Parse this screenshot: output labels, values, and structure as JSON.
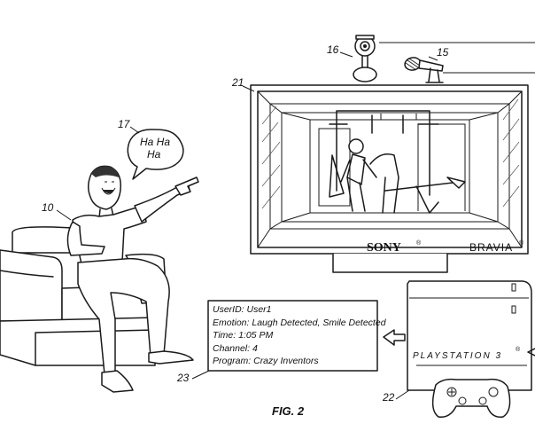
{
  "refs": {
    "camera": "16",
    "microphone": "15",
    "display": "21",
    "speech_bubble": "17",
    "user": "10",
    "info_box": "23",
    "console": "22"
  },
  "speech": {
    "line1": "Ha Ha",
    "line2": "Ha"
  },
  "tv": {
    "brand": "SONY",
    "brand_mark": "®",
    "model": "BRAVIA",
    "model_mark": "®"
  },
  "console_label": "PLAYSTATION 3",
  "console_mark": "®",
  "info": {
    "lines": [
      {
        "label": "UserID:",
        "value": "User1"
      },
      {
        "label": "Emotion:",
        "value": "Laugh Detected, Smile Detected"
      },
      {
        "label": "Time:",
        "value": "1:05 PM"
      },
      {
        "label": "Channel:",
        "value": "4"
      },
      {
        "label": "Program:",
        "value": "Crazy Inventors"
      }
    ]
  },
  "figure_caption": "FIG. 2"
}
